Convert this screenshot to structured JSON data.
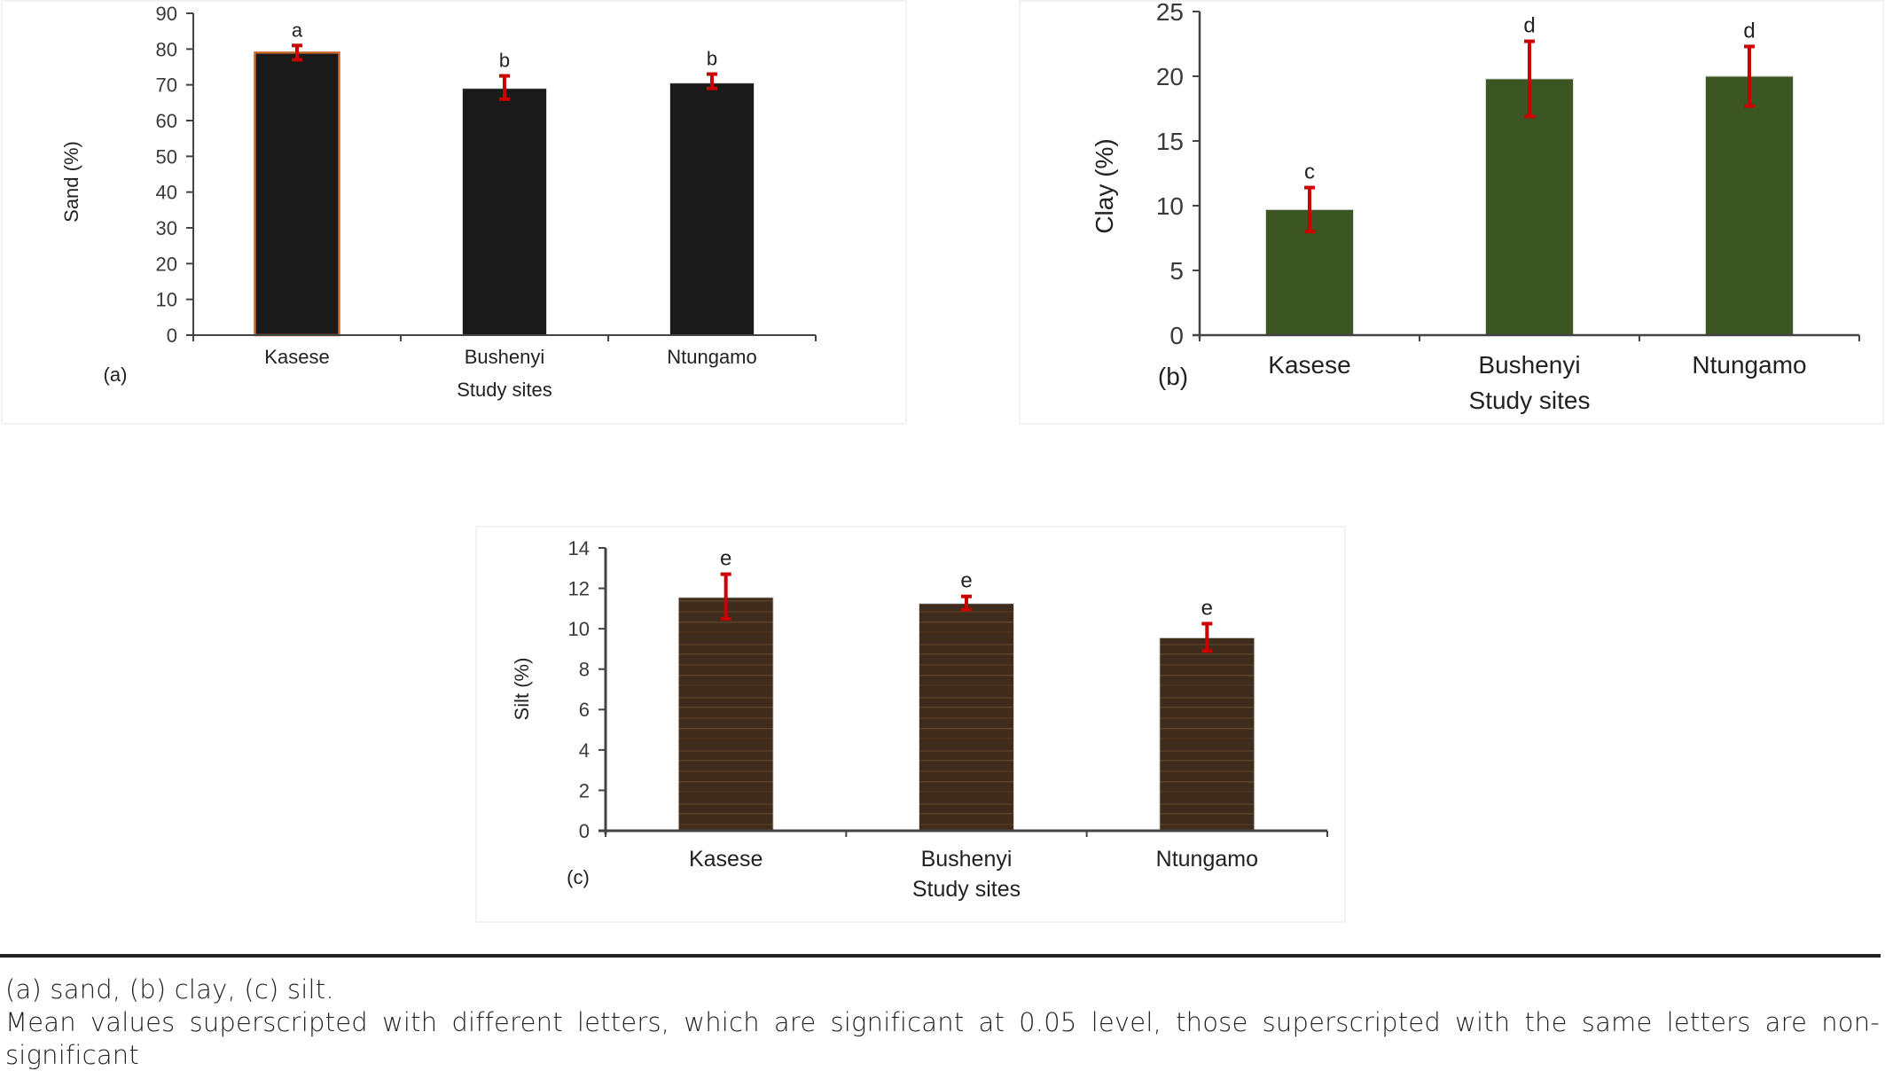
{
  "chart_data": [
    {
      "type": "bar",
      "panel_label": "(a)",
      "categories": [
        "Kasese",
        "Bushenyi",
        "Ntungamo"
      ],
      "values": [
        79,
        69,
        70.5
      ],
      "error_low": [
        77,
        66,
        69
      ],
      "error_high": [
        81,
        72.5,
        73
      ],
      "significance_letters": [
        "a",
        "b",
        "b"
      ],
      "xlabel": "Study sites",
      "ylabel": "Sand (%)",
      "ylim": [
        0,
        90
      ],
      "yticks": [
        0,
        10,
        20,
        30,
        40,
        50,
        60,
        70,
        80,
        90
      ],
      "bar_color": "#1a1a1a",
      "first_bar_outline": "#c8692a",
      "error_color": "#cc0000"
    },
    {
      "type": "bar",
      "panel_label": "(b)",
      "categories": [
        "Kasese",
        "Bushenyi",
        "Ntungamo"
      ],
      "values": [
        9.7,
        19.8,
        20.0
      ],
      "error_low": [
        8.0,
        16.9,
        17.7
      ],
      "error_high": [
        11.4,
        22.7,
        22.3
      ],
      "significance_letters": [
        "c",
        "d",
        "d"
      ],
      "xlabel": "Study sites",
      "ylabel": "Clay (%)",
      "ylim": [
        0,
        25
      ],
      "yticks": [
        0,
        5,
        10,
        15,
        20,
        25
      ],
      "bar_color": "#3b5523",
      "error_color": "#cc0000"
    },
    {
      "type": "bar",
      "panel_label": "(c)",
      "categories": [
        "Kasese",
        "Bushenyi",
        "Ntungamo"
      ],
      "values": [
        11.55,
        11.25,
        9.55
      ],
      "error_low": [
        10.5,
        10.95,
        8.9
      ],
      "error_high": [
        12.7,
        11.6,
        10.25
      ],
      "significance_letters": [
        "e",
        "e",
        "e"
      ],
      "xlabel": "Study sites",
      "ylabel": "Silt (%)",
      "ylim": [
        0,
        14
      ],
      "yticks": [
        0,
        2,
        4,
        6,
        8,
        10,
        12,
        14
      ],
      "bar_color": "#3f2c1c",
      "error_color": "#cc0000"
    }
  ],
  "footnote": {
    "line1": "(a) sand, (b) clay, (c) silt.",
    "line2": "Mean values superscripted with different letters, which are significant at 0.05 level, those superscripted with the same letters are non-significant"
  }
}
